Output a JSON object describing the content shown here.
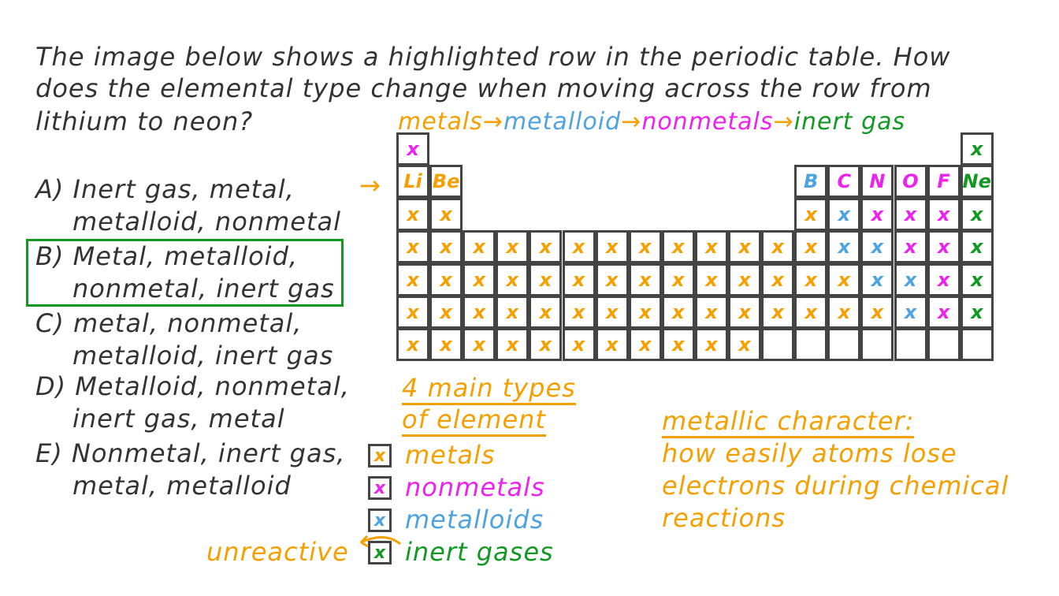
{
  "question": {
    "lines": [
      "The image below shows a highlighted row in the periodic table. How",
      "does the elemental type change when moving across the row from",
      "lithium to neon?"
    ]
  },
  "options": [
    {
      "lines": [
        "A) Inert gas, metal,",
        "metalloid, nonmetal"
      ]
    },
    {
      "lines": [
        "B) Metal, metalloid,",
        "nonmetal, inert gas"
      ],
      "selected": true
    },
    {
      "lines": [
        "C) metal, nonmetal,",
        "metalloid, inert gas"
      ]
    },
    {
      "lines": [
        "D) Metalloid, nonmetal,",
        "inert gas, metal"
      ]
    },
    {
      "lines": [
        "E) Nonmetal, inert gas,",
        "metal, metalloid"
      ]
    }
  ],
  "sequence": {
    "metals": "metals",
    "metalloid": "metalloid",
    "nonmetals": "nonmetals",
    "inert_gas": "inert gas",
    "arrow": "→"
  },
  "row_arrow": "→",
  "colors": {
    "metal": "#f5a000",
    "nonmetal": "#ee22ee",
    "metalloid": "#4ea3e0",
    "gas": "#119922",
    "answer": "#119922"
  },
  "table": {
    "mark": "x",
    "rows": [
      [
        "n",
        "",
        "",
        "",
        "",
        "",
        "",
        "",
        "",
        "",
        "",
        "",
        "",
        "",
        "",
        "",
        "",
        "g"
      ],
      [
        "Li:m",
        "Be:m",
        "",
        "",
        "",
        "",
        "",
        "",
        "",
        "",
        "",
        "",
        "B:d",
        "C:n",
        "N:n",
        "O:n",
        "F:n",
        "Ne:g"
      ],
      [
        "m",
        "m",
        "",
        "",
        "",
        "",
        "",
        "",
        "",
        "",
        "",
        "",
        "m",
        "d",
        "n",
        "n",
        "n",
        "g"
      ],
      [
        "m",
        "m",
        "m",
        "m",
        "m",
        "m",
        "m",
        "m",
        "m",
        "m",
        "m",
        "m",
        "m",
        "d",
        "d",
        "n",
        "n",
        "g"
      ],
      [
        "m",
        "m",
        "m",
        "m",
        "m",
        "m",
        "m",
        "m",
        "m",
        "m",
        "m",
        "m",
        "m",
        "m",
        "d",
        "d",
        "n",
        "g"
      ],
      [
        "m",
        "m",
        "m",
        "m",
        "m",
        "m",
        "m",
        "m",
        "m",
        "m",
        "m",
        "m",
        "m",
        "m",
        "m",
        "d",
        "n",
        "g"
      ],
      [
        "m",
        "m",
        "m",
        "m",
        "m",
        "m",
        "m",
        "m",
        "m",
        "m",
        "m",
        "-",
        "-",
        "-",
        "-",
        "-",
        "-",
        "-"
      ]
    ]
  },
  "legend": {
    "title1": "4 main types",
    "title2": "of element",
    "items": [
      {
        "label": "metals",
        "type": "m"
      },
      {
        "label": "nonmetals",
        "type": "n"
      },
      {
        "label": "metalloids",
        "type": "d"
      },
      {
        "label": "inert gases",
        "type": "g"
      }
    ],
    "unreactive": "unreactive"
  },
  "metallic": {
    "title": "metallic character:",
    "lines": [
      "how easily atoms lose",
      "electrons during chemical",
      "reactions"
    ]
  }
}
